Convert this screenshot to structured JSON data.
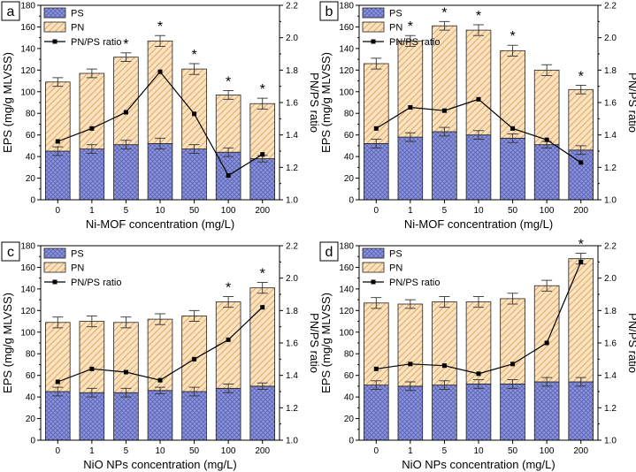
{
  "colors": {
    "ps_fill": "#8b93d8",
    "ps_hatch": "#5a63b8",
    "pn_fill": "#fbe3c2",
    "pn_hatch": "#e0a860",
    "line": "#000000"
  },
  "chart_data": [
    {
      "panel": "a",
      "type": "bar",
      "categories": [
        "0",
        "1",
        "5",
        "10",
        "50",
        "100",
        "200"
      ],
      "series": [
        {
          "name": "PS",
          "values": [
            45,
            47,
            51,
            52,
            47,
            44,
            38
          ],
          "errors": [
            4,
            4,
            4,
            5,
            4,
            4,
            3
          ]
        },
        {
          "name": "PN",
          "values": [
            64,
            70,
            81,
            95,
            74,
            53,
            51
          ],
          "errors": [
            4,
            4,
            4,
            5,
            5,
            4,
            5
          ]
        },
        {
          "name": "PN/PS ratio",
          "axis": "right",
          "values": [
            1.36,
            1.44,
            1.54,
            1.79,
            1.53,
            1.15,
            1.28
          ]
        }
      ],
      "stars": [
        false,
        false,
        true,
        true,
        true,
        true,
        true
      ],
      "xlabel": "Ni-MOF concentration (mg/L)",
      "ylabel": "EPS (mg/g MLVSS)",
      "y2label": "PN/PS ratio",
      "ylim": [
        0,
        180
      ],
      "y2lim": [
        1.0,
        2.2
      ],
      "yticks": [
        "0",
        "20",
        "40",
        "60",
        "80",
        "100",
        "120",
        "140",
        "160",
        "180"
      ],
      "y2ticks": [
        "1.0",
        "1.2",
        "1.4",
        "1.6",
        "1.8",
        "2.0",
        "2.2"
      ],
      "legend": [
        "PS",
        "PN",
        "PN/PS ratio"
      ],
      "legend_position": "top-left"
    },
    {
      "panel": "b",
      "type": "bar",
      "categories": [
        "0",
        "1",
        "5",
        "10",
        "50",
        "100",
        "200"
      ],
      "series": [
        {
          "name": "PS",
          "values": [
            52,
            58,
            63,
            60,
            57,
            51,
            46
          ],
          "errors": [
            4,
            4,
            4,
            4,
            4,
            3,
            4
          ]
        },
        {
          "name": "PN",
          "values": [
            74,
            89,
            98,
            97,
            81,
            69,
            56
          ],
          "errors": [
            5,
            5,
            4,
            5,
            5,
            5,
            4
          ]
        },
        {
          "name": "PN/PS ratio",
          "axis": "right",
          "values": [
            1.44,
            1.57,
            1.55,
            1.62,
            1.44,
            1.37,
            1.23
          ]
        }
      ],
      "stars": [
        false,
        true,
        true,
        true,
        true,
        false,
        true
      ],
      "xlabel": "Ni-MOF concentration (mg/L)",
      "ylabel": "EPS (mg/g MLVSS)",
      "y2label": "PN/PS ratio",
      "ylim": [
        0,
        180
      ],
      "y2lim": [
        1.0,
        2.2
      ],
      "yticks": [
        "0",
        "20",
        "40",
        "60",
        "80",
        "100",
        "120",
        "140",
        "160",
        "180"
      ],
      "y2ticks": [
        "1.0",
        "1.2",
        "1.4",
        "1.6",
        "1.8",
        "2.0",
        "2.2"
      ],
      "legend": [
        "PS",
        "PN",
        "PN/PS ratio"
      ],
      "legend_position": "top-left"
    },
    {
      "panel": "c",
      "type": "bar",
      "categories": [
        "0",
        "1",
        "5",
        "10",
        "50",
        "100",
        "200"
      ],
      "series": [
        {
          "name": "PS",
          "values": [
            45,
            44,
            44,
            46,
            45,
            48,
            50
          ],
          "errors": [
            4,
            4,
            4,
            3,
            4,
            4,
            3
          ]
        },
        {
          "name": "PN",
          "values": [
            64,
            66,
            65,
            66,
            70,
            80,
            91
          ],
          "errors": [
            5,
            5,
            5,
            5,
            5,
            5,
            5
          ]
        },
        {
          "name": "PN/PS ratio",
          "axis": "right",
          "values": [
            1.36,
            1.44,
            1.42,
            1.37,
            1.5,
            1.62,
            1.82
          ]
        }
      ],
      "stars": [
        false,
        false,
        false,
        false,
        false,
        true,
        true
      ],
      "xlabel": "NiO NPs concentration (mg/L)",
      "ylabel": "EPS (mg/g MLVSS)",
      "y2label": "PN/PS ratio",
      "ylim": [
        0,
        180
      ],
      "y2lim": [
        1.0,
        2.2
      ],
      "yticks": [
        "0",
        "20",
        "40",
        "60",
        "80",
        "100",
        "120",
        "140",
        "160",
        "180"
      ],
      "y2ticks": [
        "1.0",
        "1.2",
        "1.4",
        "1.6",
        "1.8",
        "2.0",
        "2.2"
      ],
      "legend": [
        "PS",
        "PN",
        "PN/PS ratio"
      ],
      "legend_position": "top-left"
    },
    {
      "panel": "d",
      "type": "bar",
      "categories": [
        "0",
        "1",
        "5",
        "10",
        "50",
        "100",
        "200"
      ],
      "series": [
        {
          "name": "PS",
          "values": [
            51,
            50,
            51,
            52,
            52,
            54,
            54
          ],
          "errors": [
            4,
            4,
            4,
            4,
            4,
            4,
            4
          ]
        },
        {
          "name": "PN",
          "values": [
            76,
            76,
            77,
            76,
            79,
            89,
            114
          ],
          "errors": [
            5,
            4,
            5,
            5,
            5,
            5,
            5
          ]
        },
        {
          "name": "PN/PS ratio",
          "axis": "right",
          "values": [
            1.44,
            1.47,
            1.46,
            1.41,
            1.47,
            1.6,
            2.1
          ]
        }
      ],
      "stars": [
        false,
        false,
        false,
        false,
        false,
        false,
        true
      ],
      "xlabel": "NiO NPs concentration (mg/L)",
      "ylabel": "EPS (mg/g MLVSS)",
      "y2label": "PN/PS ratio",
      "ylim": [
        0,
        180
      ],
      "y2lim": [
        1.0,
        2.2
      ],
      "yticks": [
        "0",
        "20",
        "40",
        "60",
        "80",
        "100",
        "120",
        "140",
        "160",
        "180"
      ],
      "y2ticks": [
        "1.0",
        "1.2",
        "1.4",
        "1.6",
        "1.8",
        "2.0",
        "2.2"
      ],
      "legend": [
        "PS",
        "PN",
        "PN/PS ratio"
      ],
      "legend_position": "top-left"
    }
  ],
  "star_symbol": "*"
}
